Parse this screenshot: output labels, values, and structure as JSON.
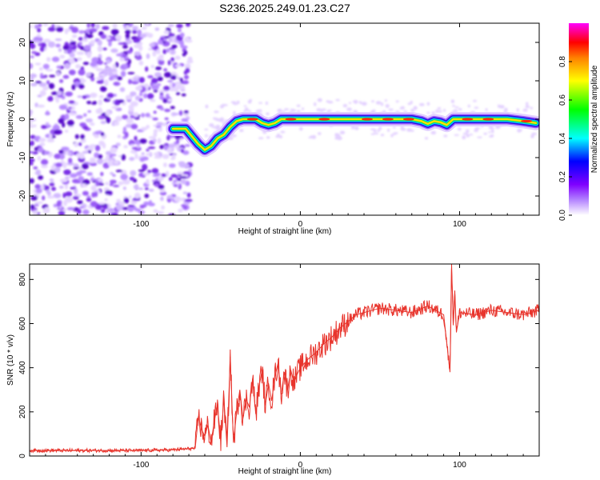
{
  "figure_title": "S236.2025.249.01.23.C27",
  "chart_data": [
    {
      "type": "heatmap",
      "title": "S236.2025.249.01.23.C27",
      "xlabel": "Height of straight line (km)",
      "ylabel": "Frequency (Hz)",
      "xlim": [
        -170,
        150
      ],
      "ylim": [
        -25,
        25
      ],
      "xticks": [
        -100,
        0,
        100
      ],
      "xtick_labels": [
        "-100",
        "0",
        "100"
      ],
      "yticks": [
        -20,
        -10,
        0,
        10,
        20
      ],
      "ytick_labels": [
        "-20",
        "-10",
        "0",
        "10",
        "20"
      ],
      "noise_region_x": [
        -170,
        -72
      ],
      "ridge": {
        "x": [
          -80,
          -72,
          -68,
          -64,
          -60,
          -56,
          -52,
          -48,
          -44,
          -40,
          -36,
          -32,
          -28,
          -24,
          -20,
          -16,
          -12,
          -8,
          -4,
          0,
          10,
          20,
          30,
          40,
          50,
          60,
          70,
          76,
          80,
          84,
          88,
          92,
          96,
          100,
          110,
          120,
          130,
          140,
          148
        ],
        "y": [
          -2.5,
          -2.5,
          -4.5,
          -6.5,
          -8,
          -7,
          -5,
          -4,
          -2,
          -0.5,
          0,
          0,
          0,
          -1,
          -1.5,
          -1,
          0,
          0,
          0,
          0,
          0,
          0,
          0,
          0,
          0,
          0,
          0,
          -0.5,
          -1.2,
          -0.5,
          -0.8,
          -1.5,
          0,
          0,
          0,
          0,
          0,
          -0.5,
          -1
        ]
      },
      "colorbar": {
        "label": "Normalized spectral amplitude",
        "range": [
          0,
          1
        ],
        "ticks": [
          0,
          0.2,
          0.4,
          0.6,
          0.8
        ],
        "tick_labels": [
          "0.0",
          "0.2",
          "0.4",
          "0.6",
          "0.8"
        ],
        "colors": [
          "#ffffff",
          "#7f00ff",
          "#0000ff",
          "#00ffff",
          "#00ff00",
          "#ffff00",
          "#ff8000",
          "#ff0000",
          "#ff00ff"
        ]
      }
    },
    {
      "type": "line",
      "title": "",
      "xlabel": "Height of straight line (km)",
      "ylabel": "SNR (10 * v/v)",
      "xlim": [
        -170,
        150
      ],
      "ylim": [
        0,
        870
      ],
      "xticks": [
        -100,
        0,
        100
      ],
      "xtick_labels": [
        "-100",
        "0",
        "100"
      ],
      "yticks": [
        0,
        200,
        400,
        600,
        800
      ],
      "ytick_labels": [
        "0",
        "200",
        "400",
        "600",
        "800"
      ],
      "series": [
        {
          "name": "SNR",
          "color": "#e8342c",
          "x": [
            -170,
            -140,
            -100,
            -80,
            -66,
            -64,
            -62,
            -60,
            -58,
            -56,
            -54,
            -52,
            -50,
            -48,
            -46,
            -44,
            -42,
            -40,
            -38,
            -36,
            -34,
            -32,
            -30,
            -28,
            -26,
            -24,
            -22,
            -20,
            -18,
            -16,
            -14,
            -12,
            -10,
            -8,
            -6,
            -4,
            -2,
            0,
            5,
            10,
            15,
            20,
            25,
            30,
            35,
            40,
            50,
            60,
            70,
            80,
            90,
            94,
            95,
            96,
            97,
            98,
            100,
            110,
            120,
            130,
            140,
            150
          ],
          "y": [
            25,
            25,
            25,
            28,
            35,
            180,
            120,
            90,
            140,
            60,
            160,
            230,
            70,
            260,
            40,
            450,
            60,
            200,
            300,
            170,
            260,
            220,
            350,
            190,
            310,
            390,
            230,
            330,
            250,
            360,
            420,
            280,
            380,
            300,
            390,
            330,
            370,
            400,
            440,
            470,
            510,
            540,
            580,
            610,
            640,
            650,
            670,
            660,
            650,
            680,
            640,
            380,
            870,
            600,
            750,
            560,
            650,
            640,
            660,
            650,
            640,
            660
          ]
        }
      ]
    }
  ]
}
